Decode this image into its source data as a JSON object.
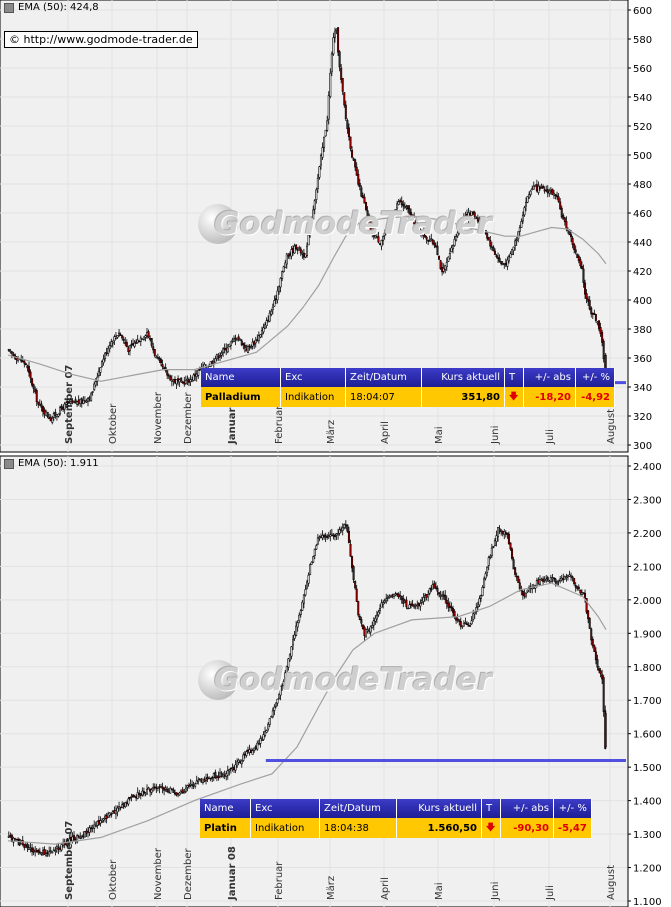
{
  "watermark": "GodmodeTrader",
  "copyright": "© http://www.godmode-trader.de",
  "table_headers": [
    "Name",
    "Exc",
    "Zeit/Datum",
    "Kurs aktuell",
    "T",
    "+/- abs",
    "+/- %"
  ],
  "colors": {
    "up": "#ffffff",
    "down": "#b00000",
    "ema": "#a0a0a0",
    "support": "#5050e0",
    "header": "#2828aa",
    "row": "#ffc800"
  },
  "chart_data": [
    {
      "type": "candlestick",
      "indicator": "EMA (50): 424,8",
      "ylim": [
        300,
        600
      ],
      "y_ticks": [
        300,
        320,
        340,
        360,
        380,
        400,
        420,
        440,
        460,
        480,
        500,
        520,
        540,
        560,
        580,
        600
      ],
      "x_labels": [
        "September 07",
        "Oktober",
        "November",
        "Dezember",
        "Januar 08",
        "Februar",
        "März",
        "April",
        "Mai",
        "Juni",
        "Juli",
        "August"
      ],
      "support_level": 343,
      "close_path": [
        [
          0,
          365
        ],
        [
          12,
          356
        ],
        [
          20,
          328
        ],
        [
          28,
          318
        ],
        [
          38,
          328
        ],
        [
          48,
          330
        ],
        [
          54,
          334
        ],
        [
          60,
          355
        ],
        [
          66,
          370
        ],
        [
          72,
          378
        ],
        [
          78,
          366
        ],
        [
          84,
          372
        ],
        [
          90,
          378
        ],
        [
          96,
          360
        ],
        [
          102,
          350
        ],
        [
          106,
          345
        ],
        [
          112,
          343
        ],
        [
          118,
          345
        ],
        [
          124,
          352
        ],
        [
          130,
          356
        ],
        [
          136,
          362
        ],
        [
          142,
          368
        ],
        [
          148,
          375
        ],
        [
          154,
          366
        ],
        [
          160,
          372
        ],
        [
          166,
          382
        ],
        [
          172,
          398
        ],
        [
          176,
          415
        ],
        [
          180,
          430
        ],
        [
          186,
          437
        ],
        [
          192,
          430
        ],
        [
          198,
          470
        ],
        [
          202,
          498
        ],
        [
          206,
          525
        ],
        [
          208,
          556
        ],
        [
          210,
          582
        ],
        [
          212,
          585
        ],
        [
          214,
          560
        ],
        [
          218,
          525
        ],
        [
          222,
          500
        ],
        [
          226,
          480
        ],
        [
          230,
          466
        ],
        [
          234,
          448
        ],
        [
          240,
          440
        ],
        [
          246,
          452
        ],
        [
          252,
          468
        ],
        [
          258,
          462
        ],
        [
          264,
          450
        ],
        [
          270,
          443
        ],
        [
          276,
          438
        ],
        [
          280,
          418
        ],
        [
          284,
          428
        ],
        [
          290,
          448
        ],
        [
          294,
          458
        ],
        [
          300,
          460
        ],
        [
          306,
          452
        ],
        [
          312,
          436
        ],
        [
          318,
          425
        ],
        [
          322,
          426
        ],
        [
          328,
          443
        ],
        [
          334,
          468
        ],
        [
          338,
          478
        ],
        [
          344,
          476
        ],
        [
          350,
          475
        ],
        [
          354,
          470
        ],
        [
          358,
          455
        ],
        [
          362,
          446
        ],
        [
          366,
          432
        ],
        [
          370,
          420
        ],
        [
          372,
          405
        ],
        [
          376,
          392
        ],
        [
          380,
          386
        ],
        [
          383,
          370
        ],
        [
          385,
          352
        ]
      ],
      "ema_path": [
        [
          0,
          362
        ],
        [
          20,
          356
        ],
        [
          40,
          349
        ],
        [
          60,
          344
        ],
        [
          80,
          348
        ],
        [
          100,
          352
        ],
        [
          120,
          352
        ],
        [
          140,
          358
        ],
        [
          160,
          364
        ],
        [
          180,
          382
        ],
        [
          190,
          395
        ],
        [
          200,
          410
        ],
        [
          210,
          430
        ],
        [
          218,
          445
        ],
        [
          226,
          453
        ],
        [
          240,
          456
        ],
        [
          260,
          458
        ],
        [
          280,
          455
        ],
        [
          300,
          449
        ],
        [
          320,
          444
        ],
        [
          330,
          444
        ],
        [
          340,
          447
        ],
        [
          350,
          450
        ],
        [
          360,
          449
        ],
        [
          370,
          442
        ],
        [
          380,
          432
        ],
        [
          385,
          425
        ]
      ],
      "last_bar": {
        "open": 362,
        "close": 351.8
      },
      "quote": {
        "name": "Palladium",
        "exc": "Indikation",
        "time": "18:04:07",
        "price": "351,80",
        "abs": "-18,20",
        "pct": "-4,92"
      }
    },
    {
      "type": "candlestick",
      "indicator": "EMA (50): 1.911",
      "ylim": [
        1100,
        2400
      ],
      "y_ticks": [
        "1.100",
        "1.200",
        "1.300",
        "1.400",
        "1.500",
        "1.600",
        "1.700",
        "1.800",
        "1.900",
        "2.000",
        "2.100",
        "2.200",
        "2.300",
        "2.400"
      ],
      "y_tick_values": [
        1100,
        1200,
        1300,
        1400,
        1500,
        1600,
        1700,
        1800,
        1900,
        2000,
        2100,
        2200,
        2300,
        2400
      ],
      "x_labels": [
        "September 07",
        "Oktober",
        "November",
        "Dezember",
        "Januar 08",
        "Februar",
        "März",
        "April",
        "Mai",
        "Juni",
        "Juli",
        "August"
      ],
      "support_level": 1520,
      "close_path": [
        [
          0,
          1290
        ],
        [
          10,
          1270
        ],
        [
          20,
          1240
        ],
        [
          30,
          1250
        ],
        [
          40,
          1280
        ],
        [
          50,
          1300
        ],
        [
          60,
          1340
        ],
        [
          70,
          1370
        ],
        [
          80,
          1410
        ],
        [
          90,
          1430
        ],
        [
          100,
          1440
        ],
        [
          110,
          1420
        ],
        [
          120,
          1450
        ],
        [
          130,
          1470
        ],
        [
          140,
          1480
        ],
        [
          146,
          1500
        ],
        [
          150,
          1520
        ],
        [
          154,
          1540
        ],
        [
          160,
          1560
        ],
        [
          166,
          1600
        ],
        [
          172,
          1680
        ],
        [
          178,
          1760
        ],
        [
          184,
          1880
        ],
        [
          190,
          1990
        ],
        [
          196,
          2120
        ],
        [
          200,
          2180
        ],
        [
          206,
          2190
        ],
        [
          212,
          2200
        ],
        [
          218,
          2230
        ],
        [
          222,
          2100
        ],
        [
          226,
          1960
        ],
        [
          230,
          1900
        ],
        [
          236,
          1930
        ],
        [
          242,
          2000
        ],
        [
          250,
          2020
        ],
        [
          258,
          1980
        ],
        [
          266,
          1990
        ],
        [
          274,
          2040
        ],
        [
          280,
          2010
        ],
        [
          286,
          1970
        ],
        [
          292,
          1920
        ],
        [
          298,
          1930
        ],
        [
          304,
          2000
        ],
        [
          310,
          2120
        ],
        [
          316,
          2210
        ],
        [
          322,
          2200
        ],
        [
          326,
          2090
        ],
        [
          332,
          2010
        ],
        [
          338,
          2040
        ],
        [
          344,
          2060
        ],
        [
          350,
          2060
        ],
        [
          356,
          2060
        ],
        [
          362,
          2080
        ],
        [
          366,
          2040
        ],
        [
          370,
          2020
        ],
        [
          372,
          2000
        ],
        [
          376,
          1880
        ],
        [
          380,
          1800
        ],
        [
          383,
          1760
        ],
        [
          385,
          1560
        ]
      ],
      "ema_path": [
        [
          0,
          1280
        ],
        [
          30,
          1270
        ],
        [
          60,
          1290
        ],
        [
          90,
          1340
        ],
        [
          120,
          1400
        ],
        [
          150,
          1450
        ],
        [
          170,
          1480
        ],
        [
          186,
          1560
        ],
        [
          200,
          1680
        ],
        [
          212,
          1780
        ],
        [
          222,
          1850
        ],
        [
          236,
          1900
        ],
        [
          260,
          1940
        ],
        [
          290,
          1950
        ],
        [
          310,
          1980
        ],
        [
          330,
          2030
        ],
        [
          350,
          2050
        ],
        [
          370,
          2010
        ],
        [
          380,
          1950
        ],
        [
          385,
          1911
        ]
      ],
      "last_bar": {
        "open": 1660,
        "close": 1560.5
      },
      "quote": {
        "name": "Platin",
        "exc": "Indikation",
        "time": "18:04:38",
        "price": "1.560,50",
        "abs": "-90,30",
        "pct": "-5,47"
      }
    }
  ]
}
